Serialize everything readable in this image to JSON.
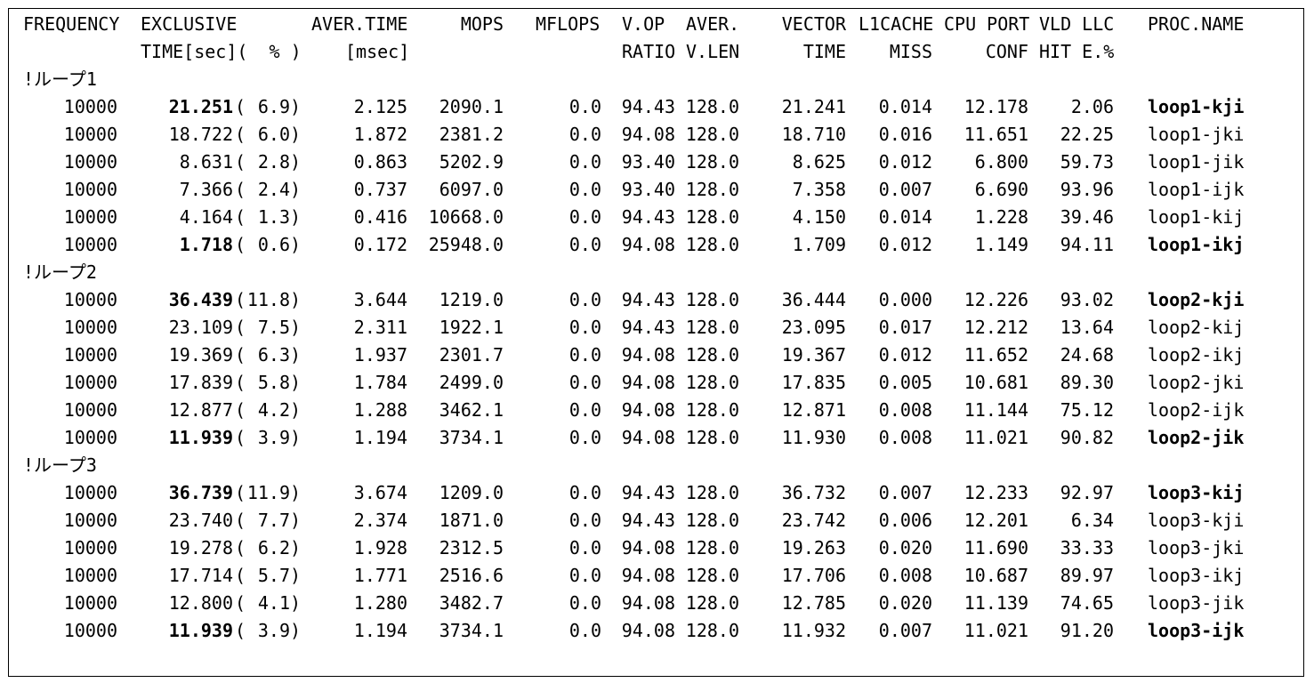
{
  "header": {
    "row1": [
      "FREQUENCY",
      "EXCLUSIVE",
      "AVER.TIME",
      "MOPS",
      "MFLOPS",
      "V.OP",
      "AVER.",
      "VECTOR",
      "L1CACHE",
      "CPU PORT",
      "VLD LLC",
      "PROC.NAME"
    ],
    "row2": [
      "TIME[sec](  % )",
      "[msec]",
      "RATIO",
      "V.LEN",
      "TIME",
      "MISS",
      "CONF",
      "HIT E.%"
    ]
  },
  "sections": [
    {
      "label": "!ループ1",
      "rows": [
        {
          "freq": "10000",
          "time": "21.251",
          "pct": "6.9",
          "aver": "2.125",
          "mops": "2090.1",
          "mflops": "0.0",
          "vop": "94.43",
          "vlen": "128.0",
          "vtime": "21.241",
          "l1": "0.014",
          "cpu": "12.178",
          "llc": "2.06",
          "name": "loop1-kji",
          "bold": true
        },
        {
          "freq": "10000",
          "time": "18.722",
          "pct": "6.0",
          "aver": "1.872",
          "mops": "2381.2",
          "mflops": "0.0",
          "vop": "94.08",
          "vlen": "128.0",
          "vtime": "18.710",
          "l1": "0.016",
          "cpu": "11.651",
          "llc": "22.25",
          "name": "loop1-jki",
          "bold": false
        },
        {
          "freq": "10000",
          "time": "8.631",
          "pct": "2.8",
          "aver": "0.863",
          "mops": "5202.9",
          "mflops": "0.0",
          "vop": "93.40",
          "vlen": "128.0",
          "vtime": "8.625",
          "l1": "0.012",
          "cpu": "6.800",
          "llc": "59.73",
          "name": "loop1-jik",
          "bold": false
        },
        {
          "freq": "10000",
          "time": "7.366",
          "pct": "2.4",
          "aver": "0.737",
          "mops": "6097.0",
          "mflops": "0.0",
          "vop": "93.40",
          "vlen": "128.0",
          "vtime": "7.358",
          "l1": "0.007",
          "cpu": "6.690",
          "llc": "93.96",
          "name": "loop1-ijk",
          "bold": false
        },
        {
          "freq": "10000",
          "time": "4.164",
          "pct": "1.3",
          "aver": "0.416",
          "mops": "10668.0",
          "mflops": "0.0",
          "vop": "94.43",
          "vlen": "128.0",
          "vtime": "4.150",
          "l1": "0.014",
          "cpu": "1.228",
          "llc": "39.46",
          "name": "loop1-kij",
          "bold": false
        },
        {
          "freq": "10000",
          "time": "1.718",
          "pct": "0.6",
          "aver": "0.172",
          "mops": "25948.0",
          "mflops": "0.0",
          "vop": "94.08",
          "vlen": "128.0",
          "vtime": "1.709",
          "l1": "0.012",
          "cpu": "1.149",
          "llc": "94.11",
          "name": "loop1-ikj",
          "bold": true
        }
      ]
    },
    {
      "label": "!ループ2",
      "rows": [
        {
          "freq": "10000",
          "time": "36.439",
          "pct": "11.8",
          "aver": "3.644",
          "mops": "1219.0",
          "mflops": "0.0",
          "vop": "94.43",
          "vlen": "128.0",
          "vtime": "36.444",
          "l1": "0.000",
          "cpu": "12.226",
          "llc": "93.02",
          "name": "loop2-kji",
          "bold": true
        },
        {
          "freq": "10000",
          "time": "23.109",
          "pct": "7.5",
          "aver": "2.311",
          "mops": "1922.1",
          "mflops": "0.0",
          "vop": "94.43",
          "vlen": "128.0",
          "vtime": "23.095",
          "l1": "0.017",
          "cpu": "12.212",
          "llc": "13.64",
          "name": "loop2-kij",
          "bold": false
        },
        {
          "freq": "10000",
          "time": "19.369",
          "pct": "6.3",
          "aver": "1.937",
          "mops": "2301.7",
          "mflops": "0.0",
          "vop": "94.08",
          "vlen": "128.0",
          "vtime": "19.367",
          "l1": "0.012",
          "cpu": "11.652",
          "llc": "24.68",
          "name": "loop2-ikj",
          "bold": false
        },
        {
          "freq": "10000",
          "time": "17.839",
          "pct": "5.8",
          "aver": "1.784",
          "mops": "2499.0",
          "mflops": "0.0",
          "vop": "94.08",
          "vlen": "128.0",
          "vtime": "17.835",
          "l1": "0.005",
          "cpu": "10.681",
          "llc": "89.30",
          "name": "loop2-jki",
          "bold": false
        },
        {
          "freq": "10000",
          "time": "12.877",
          "pct": "4.2",
          "aver": "1.288",
          "mops": "3462.1",
          "mflops": "0.0",
          "vop": "94.08",
          "vlen": "128.0",
          "vtime": "12.871",
          "l1": "0.008",
          "cpu": "11.144",
          "llc": "75.12",
          "name": "loop2-ijk",
          "bold": false
        },
        {
          "freq": "10000",
          "time": "11.939",
          "pct": "3.9",
          "aver": "1.194",
          "mops": "3734.1",
          "mflops": "0.0",
          "vop": "94.08",
          "vlen": "128.0",
          "vtime": "11.930",
          "l1": "0.008",
          "cpu": "11.021",
          "llc": "90.82",
          "name": "loop2-jik",
          "bold": true
        }
      ]
    },
    {
      "label": "!ループ3",
      "rows": [
        {
          "freq": "10000",
          "time": "36.739",
          "pct": "11.9",
          "aver": "3.674",
          "mops": "1209.0",
          "mflops": "0.0",
          "vop": "94.43",
          "vlen": "128.0",
          "vtime": "36.732",
          "l1": "0.007",
          "cpu": "12.233",
          "llc": "92.97",
          "name": "loop3-kij",
          "bold": true
        },
        {
          "freq": "10000",
          "time": "23.740",
          "pct": "7.7",
          "aver": "2.374",
          "mops": "1871.0",
          "mflops": "0.0",
          "vop": "94.43",
          "vlen": "128.0",
          "vtime": "23.742",
          "l1": "0.006",
          "cpu": "12.201",
          "llc": "6.34",
          "name": "loop3-kji",
          "bold": false
        },
        {
          "freq": "10000",
          "time": "19.278",
          "pct": "6.2",
          "aver": "1.928",
          "mops": "2312.5",
          "mflops": "0.0",
          "vop": "94.08",
          "vlen": "128.0",
          "vtime": "19.263",
          "l1": "0.020",
          "cpu": "11.690",
          "llc": "33.33",
          "name": "loop3-jki",
          "bold": false
        },
        {
          "freq": "10000",
          "time": "17.714",
          "pct": "5.7",
          "aver": "1.771",
          "mops": "2516.6",
          "mflops": "0.0",
          "vop": "94.08",
          "vlen": "128.0",
          "vtime": "17.706",
          "l1": "0.008",
          "cpu": "10.687",
          "llc": "89.97",
          "name": "loop3-ikj",
          "bold": false
        },
        {
          "freq": "10000",
          "time": "12.800",
          "pct": "4.1",
          "aver": "1.280",
          "mops": "3482.7",
          "mflops": "0.0",
          "vop": "94.08",
          "vlen": "128.0",
          "vtime": "12.785",
          "l1": "0.020",
          "cpu": "11.139",
          "llc": "74.65",
          "name": "loop3-jik",
          "bold": false
        },
        {
          "freq": "10000",
          "time": "11.939",
          "pct": "3.9",
          "aver": "1.194",
          "mops": "3734.1",
          "mflops": "0.0",
          "vop": "94.08",
          "vlen": "128.0",
          "vtime": "11.932",
          "l1": "0.007",
          "cpu": "11.021",
          "llc": "91.20",
          "name": "loop3-ijk",
          "bold": true
        }
      ]
    }
  ]
}
